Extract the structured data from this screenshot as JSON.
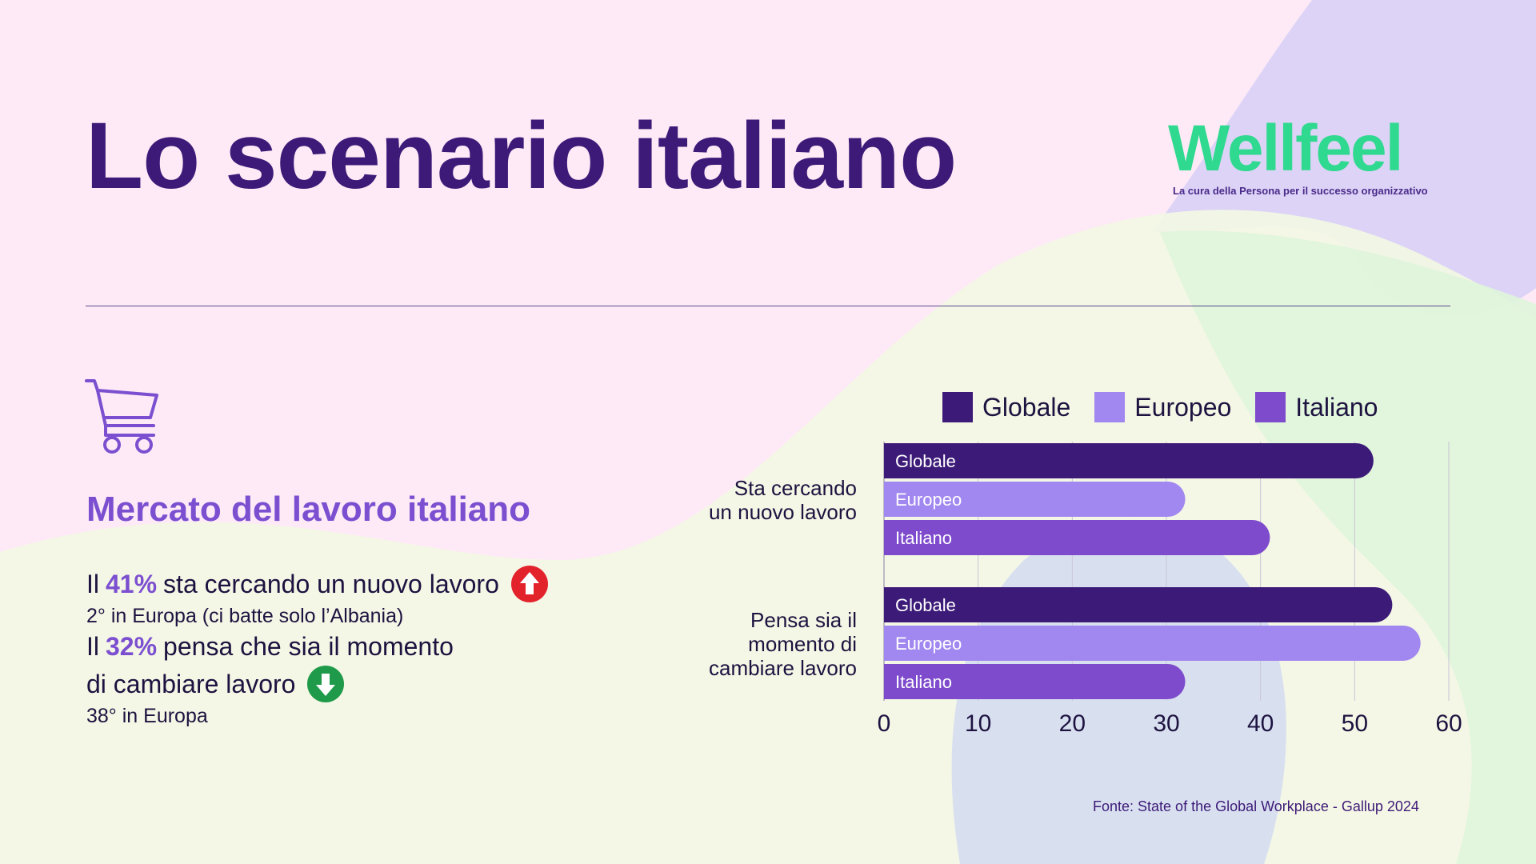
{
  "title": "Lo scenario italiano",
  "logo": {
    "word": "Wellfeel",
    "tagline": "La cura della Persona per il successo organizzativo"
  },
  "section": {
    "icon": "shopping-cart-icon",
    "subtitle": "Mercato del lavoro italiano",
    "stats": [
      {
        "prefix": "Il",
        "highlight": "41%",
        "text": "sta cercando un nuovo lavoro",
        "trend": "up",
        "note": "2° in Europa (ci batte solo l’Albania)"
      },
      {
        "prefix": "Il",
        "highlight": "32%",
        "text": "pensa che sia il momento",
        "text2": "di cambiare lavoro",
        "trend": "down",
        "note": "38° in Europa"
      }
    ]
  },
  "colors": {
    "Globale": "#3c1a78",
    "Europeo": "#a187f0",
    "Italiano": "#7e4bcc",
    "up_arrow": "#e3232c",
    "down_arrow": "#1f9a4a"
  },
  "chart_data": {
    "type": "bar",
    "orientation": "horizontal",
    "categories": [
      [
        "Sta cercando",
        "un nuovo lavoro"
      ],
      [
        "Pensa sia il",
        "momento di",
        "cambiare lavoro"
      ]
    ],
    "series": [
      {
        "name": "Globale",
        "values": [
          52,
          54
        ]
      },
      {
        "name": "Europeo",
        "values": [
          32,
          57
        ]
      },
      {
        "name": "Italiano",
        "values": [
          41,
          32
        ]
      }
    ],
    "xlim": [
      0,
      60
    ],
    "xticks": [
      0,
      10,
      20,
      30,
      40,
      50,
      60
    ],
    "grid": true,
    "legend": "top"
  },
  "source": "Fonte: State of the Global Workplace - Gallup 2024"
}
